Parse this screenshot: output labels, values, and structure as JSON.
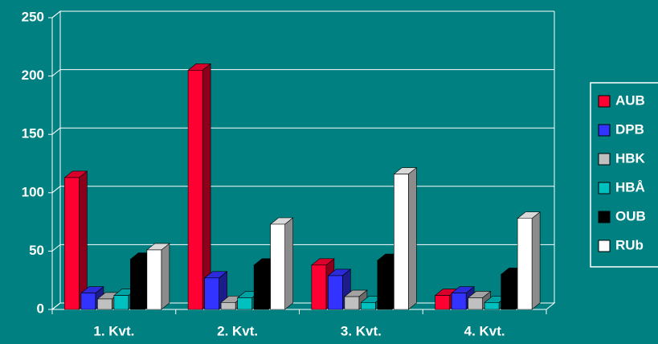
{
  "chart_data": {
    "type": "bar3d",
    "categories": [
      "1. Kvt.",
      "2. Kvt.",
      "3. Kvt.",
      "4. Kvt."
    ],
    "series": [
      {
        "name": "AUB",
        "color": "#ff0033",
        "values": [
          113,
          205,
          38,
          12
        ]
      },
      {
        "name": "DPB",
        "color": "#3333ff",
        "values": [
          14,
          27,
          29,
          14
        ]
      },
      {
        "name": "HBK",
        "color": "#c0c0c0",
        "values": [
          9,
          6,
          11,
          10
        ]
      },
      {
        "name": "HBÅ",
        "color": "#00c0c0",
        "values": [
          12,
          10,
          6,
          6
        ]
      },
      {
        "name": "OUB",
        "color": "#000000",
        "values": [
          43,
          38,
          42,
          30
        ]
      },
      {
        "name": "RUb",
        "color": "#ffffff",
        "values": [
          51,
          73,
          116,
          78
        ]
      }
    ],
    "ylim": [
      0,
      250
    ],
    "yticks": [
      0,
      50,
      100,
      150,
      200,
      250
    ],
    "grid": true,
    "legend": "right"
  }
}
